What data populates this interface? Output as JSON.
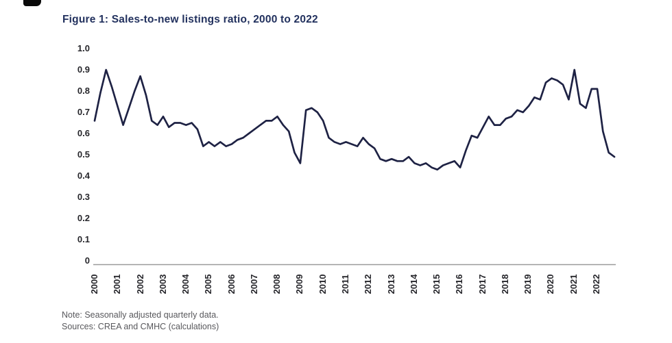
{
  "figure": {
    "title": "Figure 1: Sales-to-new listings ratio, 2000 to 2022",
    "note_line1": "Note: Seasonally adjusted quarterly data.",
    "note_line2": "Sources: CREA and CMHC (calculations)",
    "colors": {
      "line": "#1e2244",
      "title": "#22315e",
      "axis_line": "#999999",
      "tick_text": "#26262b",
      "note_text": "#58585c",
      "background": "#ffffff"
    }
  },
  "chart_data": {
    "type": "line",
    "title": "Figure 1: Sales-to-new listings ratio, 2000 to 2022",
    "xlabel": "",
    "ylabel": "",
    "ylim": [
      0,
      1.0
    ],
    "y_tick_labels": [
      "1.0",
      "0.9",
      "0.8",
      "0.7",
      "0.6",
      "0.5",
      "0.4",
      "0.3",
      "0.2",
      "0.1",
      "0"
    ],
    "y_tick_values": [
      1.0,
      0.9,
      0.8,
      0.7,
      0.6,
      0.5,
      0.4,
      0.3,
      0.2,
      0.1,
      0
    ],
    "x_tick_labels": [
      "2000",
      "2001",
      "2002",
      "2003",
      "2004",
      "2005",
      "2006",
      "2007",
      "2008",
      "2009",
      "2010",
      "2011",
      "2012",
      "2013",
      "2014",
      "2015",
      "2016",
      "2017",
      "2018",
      "2019",
      "2020",
      "2021",
      "2022"
    ],
    "grid": false,
    "legend_position": "none",
    "frequency": "quarterly",
    "series": [
      {
        "name": "Sales-to-new listings ratio",
        "x_start": "2000Q1",
        "x_end": "2022Q4",
        "values": [
          0.66,
          0.79,
          0.9,
          0.82,
          0.73,
          0.64,
          0.72,
          0.8,
          0.87,
          0.78,
          0.66,
          0.64,
          0.68,
          0.63,
          0.65,
          0.65,
          0.64,
          0.65,
          0.62,
          0.54,
          0.56,
          0.54,
          0.56,
          0.54,
          0.55,
          0.57,
          0.58,
          0.6,
          0.62,
          0.64,
          0.66,
          0.66,
          0.68,
          0.64,
          0.61,
          0.51,
          0.46,
          0.71,
          0.72,
          0.7,
          0.66,
          0.58,
          0.56,
          0.55,
          0.56,
          0.55,
          0.54,
          0.58,
          0.55,
          0.53,
          0.48,
          0.47,
          0.48,
          0.47,
          0.47,
          0.49,
          0.46,
          0.45,
          0.46,
          0.44,
          0.43,
          0.45,
          0.46,
          0.47,
          0.44,
          0.52,
          0.59,
          0.58,
          0.63,
          0.68,
          0.64,
          0.64,
          0.67,
          0.68,
          0.71,
          0.7,
          0.73,
          0.77,
          0.76,
          0.84,
          0.86,
          0.85,
          0.83,
          0.76,
          0.9,
          0.74,
          0.72,
          0.81,
          0.81,
          0.61,
          0.51,
          0.49
        ]
      }
    ]
  }
}
